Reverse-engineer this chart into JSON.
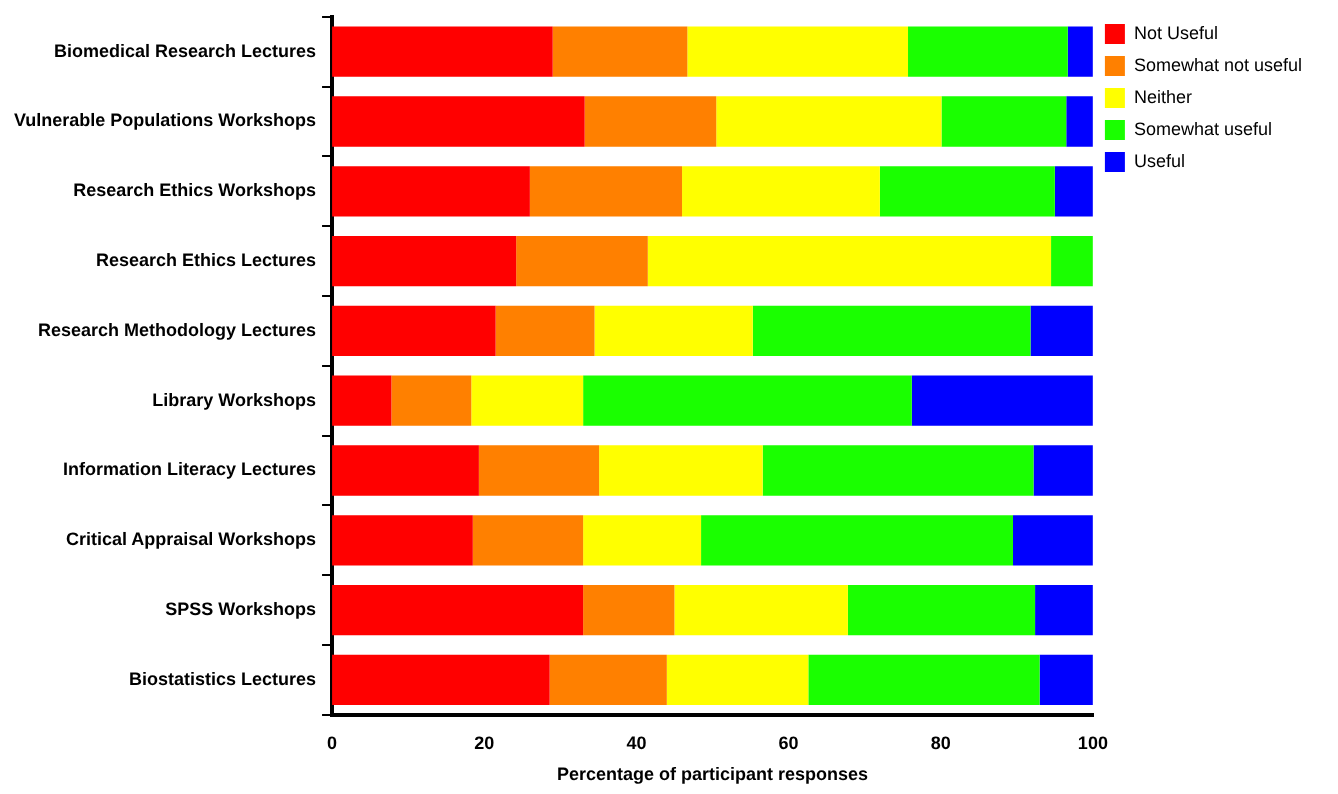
{
  "chart_data": {
    "type": "bar",
    "orientation": "horizontal",
    "stacked": true,
    "xlabel": "Percentage of participant responses",
    "categories": [
      "Biomedical Research Lectures",
      "Vulnerable Populations Workshops",
      "Research Ethics Workshops",
      "Research Ethics Lectures",
      "Research Methodology Lectures",
      "Library Workshops",
      "Information Literacy Lectures",
      "Critical Appraisal Workshops",
      "SPSS Workshops",
      "Biostatistics Lectures"
    ],
    "series": [
      {
        "name": "Not Useful",
        "color": "#ff0000",
        "values": [
          29,
          33.2,
          26,
          24.2,
          21.5,
          7.8,
          19.3,
          18.5,
          33,
          28.6
        ]
      },
      {
        "name": "Somewhat not useful",
        "color": "#ff8000",
        "values": [
          17.7,
          17.3,
          20,
          17.3,
          13,
          10.5,
          15.8,
          14.5,
          12,
          15.4
        ]
      },
      {
        "name": "Neither",
        "color": "#ffff00",
        "values": [
          29,
          29.6,
          26,
          53,
          20.8,
          14.7,
          21.5,
          15.5,
          22.8,
          18.6
        ]
      },
      {
        "name": "Somewhat useful",
        "color": "#1aff00",
        "values": [
          21,
          16.4,
          23,
          5.5,
          36.5,
          43.2,
          35.6,
          41,
          24.6,
          30.4
        ]
      },
      {
        "name": "Useful",
        "color": "#0000ff",
        "values": [
          3.3,
          3.5,
          5,
          0,
          8.2,
          23.8,
          7.8,
          10.5,
          7.6,
          7
        ]
      }
    ],
    "xlim": [
      0,
      100
    ],
    "xticks": [
      0,
      20,
      40,
      60,
      80,
      100
    ],
    "grid": false,
    "legend": "top right"
  }
}
